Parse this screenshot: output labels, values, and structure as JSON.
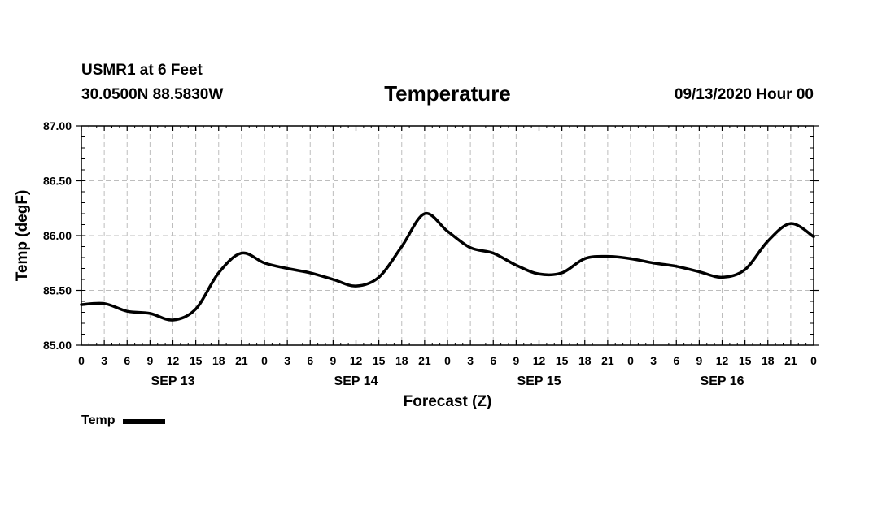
{
  "header": {
    "station": "USMR1 at 6 Feet",
    "coords": "30.0500N 88.5830W",
    "title": "Temperature",
    "datetime": "09/13/2020 Hour 00"
  },
  "legend": {
    "label": "Temp",
    "color": "#000000"
  },
  "chart_data": {
    "type": "line",
    "title": "Temperature",
    "xlabel": "Forecast (Z)",
    "ylabel": "Temp (degF)",
    "ylim": [
      85.0,
      87.0
    ],
    "xlim": [
      0,
      96
    ],
    "y_ticks": [
      "85.00",
      "85.50",
      "86.00",
      "86.50",
      "87.00"
    ],
    "x_tick_labels": [
      "0",
      "3",
      "6",
      "9",
      "12",
      "15",
      "18",
      "21",
      "0",
      "3",
      "6",
      "9",
      "12",
      "15",
      "18",
      "21",
      "0",
      "3",
      "6",
      "9",
      "12",
      "15",
      "18",
      "21",
      "0",
      "3",
      "6",
      "9",
      "12",
      "15",
      "18",
      "21",
      "0"
    ],
    "day_labels": [
      {
        "label": "SEP 13",
        "hour": 12
      },
      {
        "label": "SEP 14",
        "hour": 36
      },
      {
        "label": "SEP 15",
        "hour": 60
      },
      {
        "label": "SEP 16",
        "hour": 84
      }
    ],
    "grid": true,
    "series": [
      {
        "name": "Temp",
        "x": [
          0,
          3,
          6,
          9,
          12,
          15,
          18,
          21,
          24,
          27,
          30,
          33,
          36,
          39,
          42,
          45,
          48,
          51,
          54,
          57,
          60,
          63,
          66,
          69,
          72,
          75,
          78,
          81,
          84,
          87,
          90,
          93,
          96
        ],
        "values": [
          85.37,
          85.38,
          85.31,
          85.29,
          85.23,
          85.33,
          85.66,
          85.84,
          85.75,
          85.7,
          85.66,
          85.6,
          85.54,
          85.62,
          85.9,
          86.2,
          86.04,
          85.89,
          85.84,
          85.73,
          85.65,
          85.66,
          85.79,
          85.81,
          85.79,
          85.75,
          85.72,
          85.67,
          85.62,
          85.69,
          85.95,
          86.11,
          85.99
        ]
      }
    ]
  }
}
